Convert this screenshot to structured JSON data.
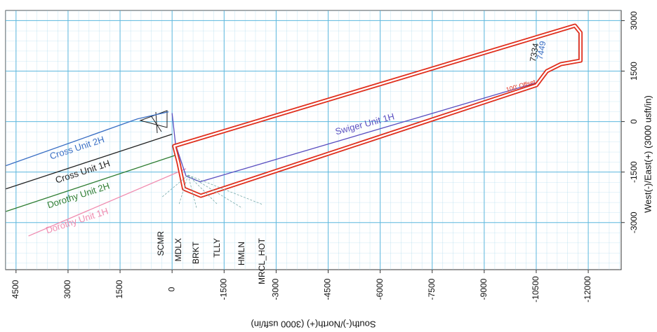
{
  "chart_data": {
    "type": "line",
    "x_label": "South(-)/North(+) (3000 usft/in)",
    "y_label": "West(-)/East(+) (3000 usft/in)",
    "xlim": [
      4800,
      -12950
    ],
    "ylim": [
      -4400,
      3300
    ],
    "xticks": [
      4500,
      3000,
      1500,
      0,
      -1500,
      -3000,
      -4500,
      -6000,
      -7500,
      -9000,
      -10500,
      -12000
    ],
    "yticks": [
      3000,
      1500,
      0,
      -1500,
      -3000
    ],
    "grid": true,
    "series": [
      {
        "name": "Cross Unit 2H",
        "color": "#3a6fc4",
        "x": [
          4790,
          1000,
          100
        ],
        "y": [
          -1310,
          80,
          290
        ]
      },
      {
        "name": "Cross Unit 1H",
        "color": "#222222",
        "x": [
          4790,
          0
        ],
        "y": [
          -2000,
          -375
        ]
      },
      {
        "name": "Dorothy Unit 2H",
        "color": "#2e7d32",
        "x": [
          4790,
          -100
        ],
        "y": [
          -2670,
          -1000
        ]
      },
      {
        "name": "Dorothy Unit 1H",
        "color": "#f08cb0",
        "x": [
          4140,
          -400
        ],
        "y": [
          -3400,
          -1400
        ]
      },
      {
        "name": "Swiger Unit 1H",
        "color": "#5a4fc0",
        "x": [
          0,
          -101,
          -404,
          -808,
          -10605
        ],
        "y": [
          250,
          -686,
          -1622,
          -1789,
          1186
        ]
      },
      {
        "color": "#e0301e",
        "closed": true,
        "x": [
          -61,
          -11615,
          -11777,
          -11777,
          -11211,
          -10807,
          -10504,
          -828,
          -343,
          -182
        ],
        "y": [
          -728,
          2850,
          2642,
          1810,
          1706,
          1498,
          1082,
          -2205,
          -1997,
          -1206
        ]
      }
    ],
    "annotations": [
      "SCMR",
      "MDLX",
      "BRKT",
      "TLLY",
      "HMLN",
      "MRCL_HOT",
      "100' Offset",
      "7334",
      "7449"
    ]
  }
}
